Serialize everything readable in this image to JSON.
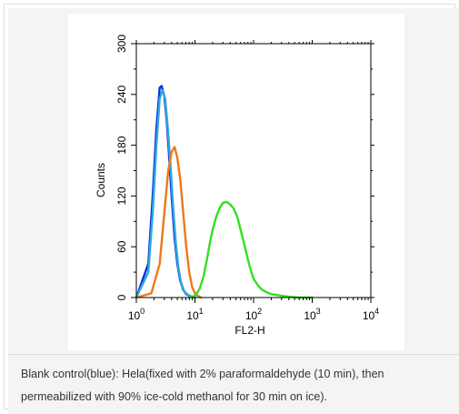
{
  "chart_data": {
    "type": "line",
    "xlabel": "FL2-H",
    "ylabel": "Counts",
    "x_scale": "log",
    "xlim": [
      1,
      10000
    ],
    "ylim": [
      0,
      300
    ],
    "x_ticks": [
      {
        "value": 1,
        "base": "10",
        "exp": "0"
      },
      {
        "value": 10,
        "base": "10",
        "exp": "1"
      },
      {
        "value": 100,
        "base": "10",
        "exp": "2"
      },
      {
        "value": 1000,
        "base": "10",
        "exp": "3"
      },
      {
        "value": 10000,
        "base": "10",
        "exp": "4"
      }
    ],
    "y_ticks": [
      0,
      60,
      120,
      180,
      240,
      300
    ],
    "grid": false,
    "series": [
      {
        "color": "#0a2fd6",
        "x": [
          1,
          1.6,
          1.9,
          2.2,
          2.5,
          2.7,
          3.0,
          3.3,
          3.6,
          4.0,
          4.5,
          5.0,
          5.6,
          6.3,
          7.1,
          8.0,
          9.0,
          10
        ],
        "y": [
          0,
          40,
          120,
          200,
          248,
          250,
          238,
          210,
          170,
          120,
          70,
          40,
          20,
          9,
          4,
          2,
          1,
          0
        ]
      },
      {
        "color": "#2fa8e0",
        "x": [
          1,
          1.6,
          1.9,
          2.2,
          2.5,
          2.8,
          3.1,
          3.4,
          3.8,
          4.2,
          4.7,
          5.2,
          5.8,
          6.5,
          7.3,
          8.2,
          9.2,
          10
        ],
        "y": [
          0,
          30,
          100,
          180,
          235,
          245,
          235,
          205,
          160,
          112,
          65,
          36,
          18,
          8,
          4,
          2,
          1,
          0
        ]
      },
      {
        "color": "#f07818",
        "x": [
          1,
          1.8,
          2.5,
          3.0,
          3.5,
          4.0,
          4.5,
          5.0,
          5.6,
          6.3,
          7.1,
          8.0,
          9.0,
          10,
          11.2,
          12.6
        ],
        "y": [
          0,
          5,
          40,
          100,
          150,
          172,
          178,
          165,
          140,
          100,
          60,
          30,
          12,
          5,
          2,
          0
        ]
      },
      {
        "color": "#33e020",
        "x": [
          8,
          10,
          12,
          14,
          16,
          18,
          20,
          23,
          26,
          30,
          35,
          40,
          46,
          53,
          60,
          70,
          80,
          90,
          100,
          120,
          140,
          170,
          200,
          250,
          300,
          400,
          600,
          1000
        ],
        "y": [
          0,
          2,
          10,
          25,
          45,
          65,
          80,
          95,
          105,
          112,
          113,
          110,
          105,
          95,
          80,
          62,
          45,
          32,
          22,
          14,
          9,
          6,
          4,
          3,
          2,
          1,
          0,
          0
        ]
      }
    ]
  },
  "caption": {
    "text": "Blank control(blue): Hela(fixed with 2% paraformaldehyde (10 min), then permeabilized with 90% ice-cold methanol for 30 min on ice)."
  }
}
